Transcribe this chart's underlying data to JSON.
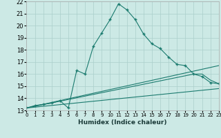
{
  "title": "",
  "xlabel": "Humidex (Indice chaleur)",
  "xlim": [
    0,
    23
  ],
  "ylim": [
    13,
    22
  ],
  "xticks": [
    0,
    1,
    2,
    3,
    4,
    5,
    6,
    7,
    8,
    9,
    10,
    11,
    12,
    13,
    14,
    15,
    16,
    17,
    18,
    19,
    20,
    21,
    22,
    23
  ],
  "yticks": [
    13,
    14,
    15,
    16,
    17,
    18,
    19,
    20,
    21,
    22
  ],
  "bg_color": "#cce9e5",
  "grid_color": "#aacfcb",
  "line_color": "#1a7a6e",
  "lines": [
    {
      "x": [
        0,
        1,
        2,
        3,
        4,
        5,
        6,
        7,
        8,
        9,
        10,
        11,
        12,
        13,
        14,
        15,
        16,
        17,
        18,
        19,
        20,
        21,
        22,
        23
      ],
      "y": [
        13.2,
        13.4,
        13.5,
        13.6,
        13.8,
        13.2,
        16.3,
        16.0,
        18.3,
        19.4,
        20.5,
        21.8,
        21.3,
        20.5,
        19.3,
        18.5,
        18.1,
        17.4,
        16.8,
        16.7,
        16.0,
        15.8,
        15.3,
        15.2
      ],
      "has_markers": true
    },
    {
      "x": [
        0,
        20,
        21,
        22,
        23
      ],
      "y": [
        13.2,
        16.0,
        16.0,
        15.5,
        15.2
      ],
      "has_markers": false
    },
    {
      "x": [
        0,
        23
      ],
      "y": [
        13.2,
        16.7
      ],
      "has_markers": false
    },
    {
      "x": [
        0,
        23
      ],
      "y": [
        13.2,
        14.8
      ],
      "has_markers": false
    }
  ]
}
